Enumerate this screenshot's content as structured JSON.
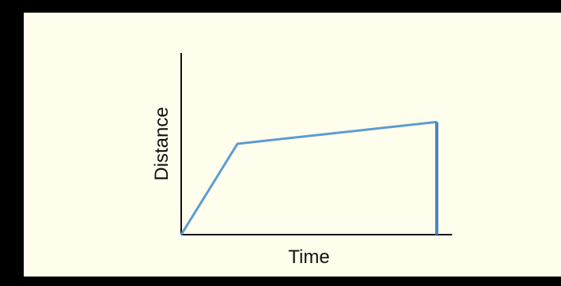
{
  "chart_data": {
    "type": "line",
    "title": "",
    "xlabel": "Time",
    "ylabel": "Distance",
    "x_ticks": [],
    "y_ticks": [],
    "grid": false,
    "series": [
      {
        "x": [
          0,
          0.22,
          1.0
        ],
        "y": [
          0,
          0.5,
          0.62
        ],
        "color": "#5b9bd5"
      }
    ],
    "end_marker": {
      "x": 1.0,
      "y_from": 0,
      "y_to": 0.62,
      "color": "#4a86c5"
    },
    "xlim": [
      0,
      1.06
    ],
    "ylim": [
      0,
      1.0
    ]
  },
  "colors": {
    "frame": "#000000",
    "background": "#fffdec",
    "axis": "#111111",
    "series": "#5b9bd5"
  }
}
